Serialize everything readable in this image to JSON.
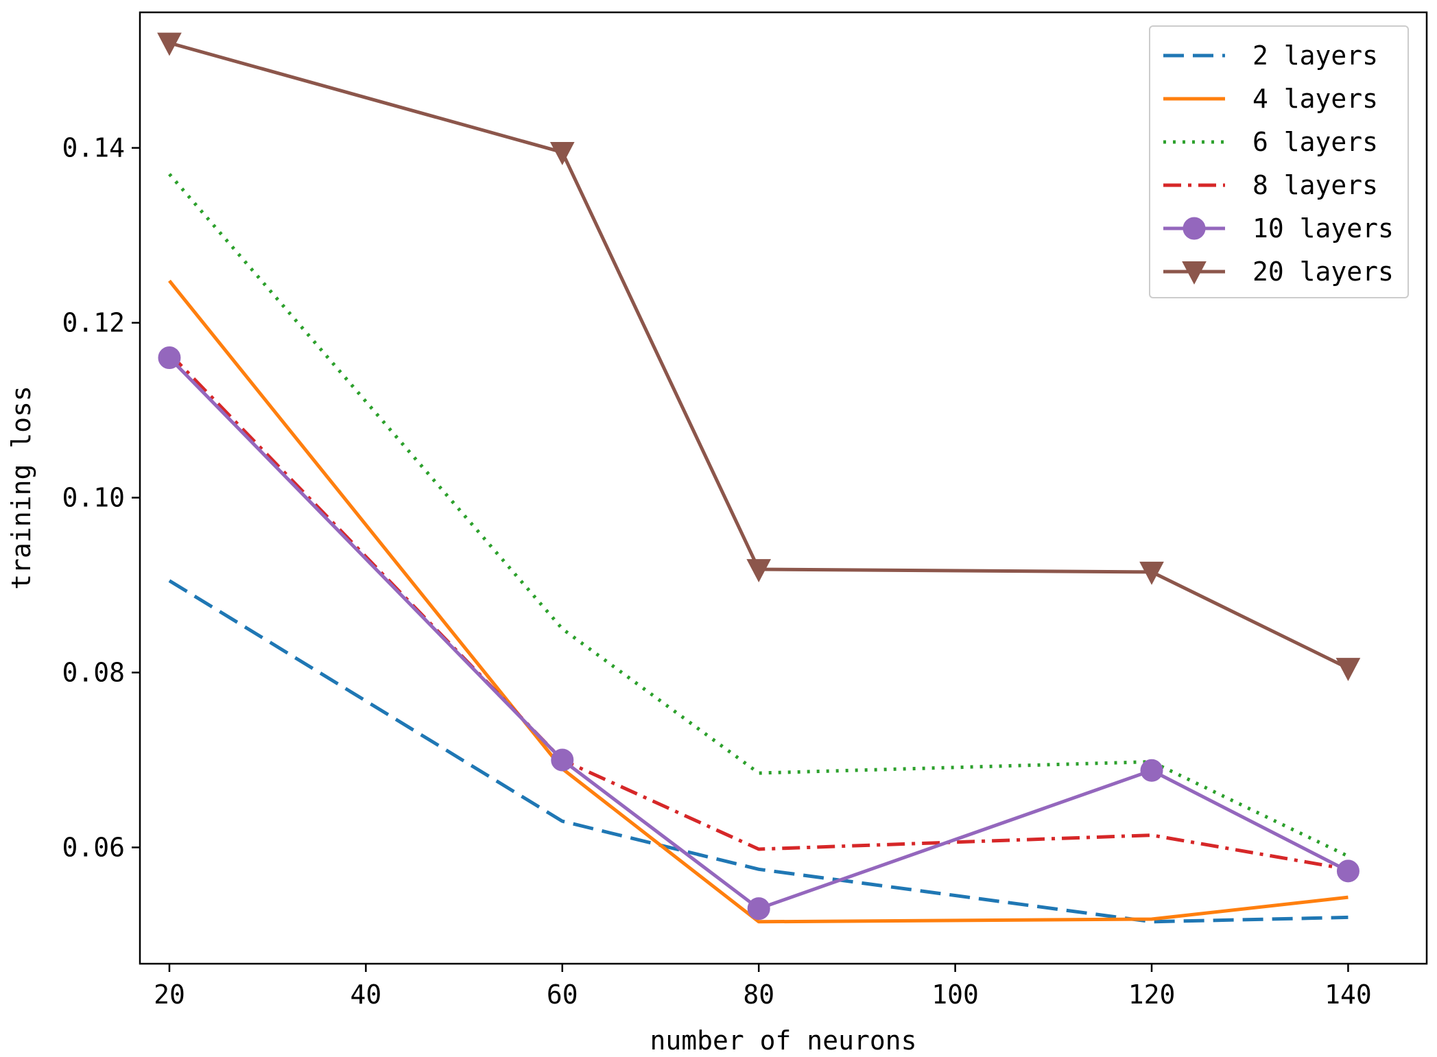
{
  "chart_data": {
    "type": "line",
    "title": "",
    "xlabel": "number of neurons",
    "ylabel": "training loss",
    "x_categories": [
      "20",
      "60",
      "80",
      "120",
      "140"
    ],
    "x_positions": [
      20,
      60,
      80,
      120,
      140
    ],
    "xlim": [
      17,
      148
    ],
    "ylim": [
      0.0467,
      0.1555
    ],
    "xticks": [
      20,
      40,
      60,
      80,
      100,
      120,
      140
    ],
    "xtick_labels": [
      "20",
      "40",
      "60",
      "80",
      "100",
      "120",
      "140"
    ],
    "yticks": [
      0.06,
      0.08,
      0.1,
      0.12,
      0.14
    ],
    "ytick_labels": [
      "0.06",
      "0.08",
      "0.10",
      "0.12",
      "0.14"
    ],
    "grid": false,
    "legend_position": "top-right",
    "series": [
      {
        "name": "2 layers",
        "color": "#1f77b4",
        "linestyle": "dashed",
        "marker": "none",
        "values": [
          0.0905,
          0.063,
          0.0575,
          0.0515,
          0.052
        ]
      },
      {
        "name": "4 layers",
        "color": "#ff7f0e",
        "linestyle": "solid",
        "marker": "none",
        "values": [
          0.1248,
          0.069,
          0.0515,
          0.0518,
          0.0543
        ]
      },
      {
        "name": "6 layers",
        "color": "#2ca02c",
        "linestyle": "dotted",
        "marker": "none",
        "values": [
          0.137,
          0.085,
          0.0685,
          0.0698,
          0.059
        ]
      },
      {
        "name": "8 layers",
        "color": "#d62728",
        "linestyle": "dashdot",
        "marker": "none",
        "values": [
          0.1165,
          0.07,
          0.0598,
          0.0614,
          0.0575
        ]
      },
      {
        "name": "10 layers",
        "color": "#9467bd",
        "linestyle": "solid",
        "marker": "circle",
        "values": [
          0.116,
          0.07,
          0.053,
          0.0688,
          0.0573
        ]
      },
      {
        "name": "20 layers",
        "color": "#8c564b",
        "linestyle": "solid",
        "marker": "triangle-down",
        "values": [
          0.152,
          0.1395,
          0.0918,
          0.0915,
          0.0805
        ]
      }
    ]
  }
}
